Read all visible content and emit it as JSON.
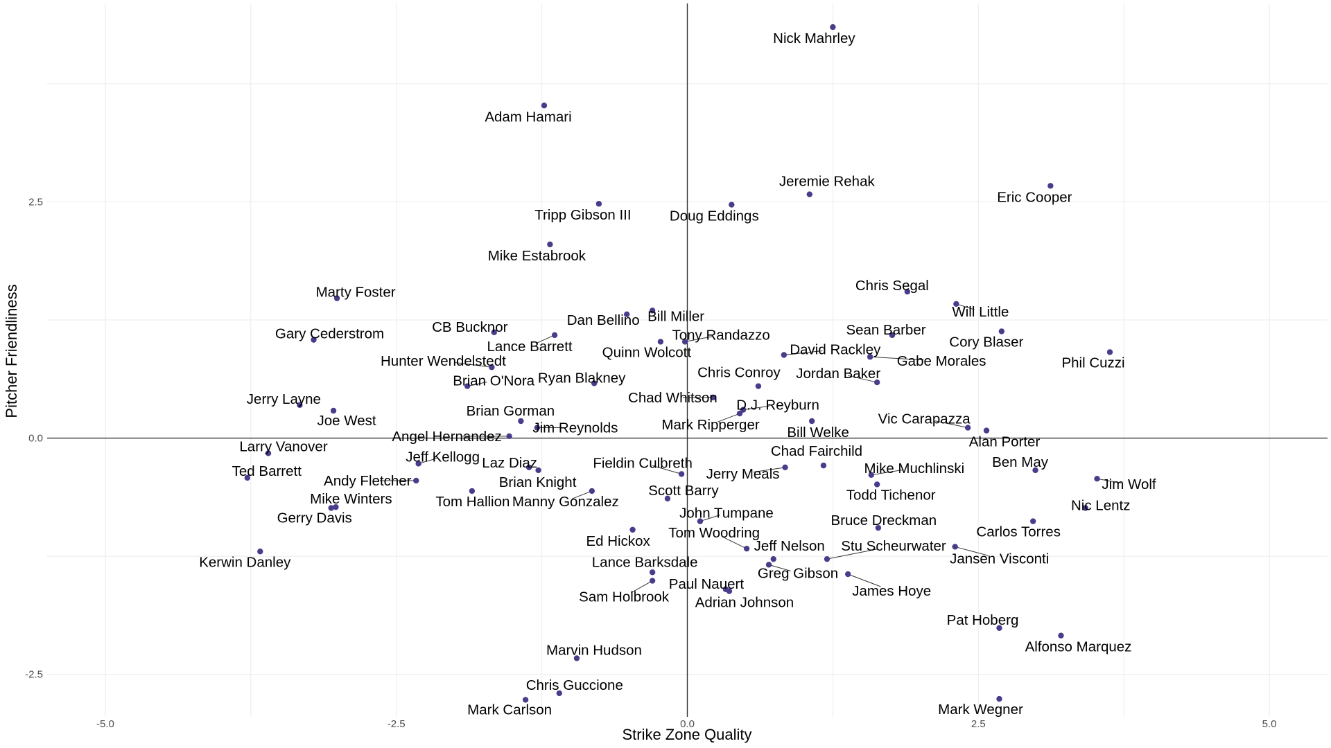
{
  "chart_data": {
    "type": "scatter",
    "title": "",
    "xlabel": "Strike Zone Quality",
    "ylabel": "Pitcher Friendliness",
    "xlim": [
      -5.5,
      5.5
    ],
    "ylim": [
      -2.95,
      4.6
    ],
    "x_ticks": [
      -5.0,
      -2.5,
      0.0,
      2.5,
      5.0
    ],
    "x_tick_labels": [
      "-5.0",
      "-2.5",
      "0.0",
      "2.5",
      "5.0"
    ],
    "y_ticks": [
      -2.5,
      0.0,
      2.5
    ],
    "y_tick_labels": [
      "-2.5",
      "0.0",
      "2.5"
    ],
    "grid": true,
    "zero_lines": true,
    "point_color": "#483d8b",
    "points": [
      {
        "name": "Nick Mahrley",
        "x": 1.25,
        "y": 4.35
      },
      {
        "name": "Adam Hamari",
        "x": -1.23,
        "y": 3.52
      },
      {
        "name": "Jeremie Rehak",
        "x": 1.05,
        "y": 2.58
      },
      {
        "name": "Eric Cooper",
        "x": 3.12,
        "y": 2.67
      },
      {
        "name": "Tripp Gibson III",
        "x": -0.76,
        "y": 2.48
      },
      {
        "name": "Doug Eddings",
        "x": 0.38,
        "y": 2.47
      },
      {
        "name": "Mike Estabrook",
        "x": -1.18,
        "y": 2.05
      },
      {
        "name": "Chris Segal",
        "x": 1.89,
        "y": 1.55
      },
      {
        "name": "Marty Foster",
        "x": -3.01,
        "y": 1.48
      },
      {
        "name": "Bill Miller",
        "x": -0.3,
        "y": 1.35
      },
      {
        "name": "Dan Bellino",
        "x": -0.52,
        "y": 1.31
      },
      {
        "name": "Will Little",
        "x": 2.31,
        "y": 1.42
      },
      {
        "name": "Sean Barber",
        "x": 1.76,
        "y": 1.09
      },
      {
        "name": "Cory Blaser",
        "x": 2.7,
        "y": 1.13
      },
      {
        "name": "CB Bucknor",
        "x": -1.66,
        "y": 1.12
      },
      {
        "name": "Gary Cederstrom",
        "x": -3.21,
        "y": 1.04
      },
      {
        "name": "Lance Barrett",
        "x": -1.14,
        "y": 1.09
      },
      {
        "name": "Tony Randazzo",
        "x": -0.02,
        "y": 1.02
      },
      {
        "name": "Quinn Wolcott",
        "x": -0.23,
        "y": 1.02
      },
      {
        "name": "David Rackley",
        "x": 0.83,
        "y": 0.88
      },
      {
        "name": "Phil Cuzzi",
        "x": 3.63,
        "y": 0.91
      },
      {
        "name": "Gabe Morales",
        "x": 1.57,
        "y": 0.86
      },
      {
        "name": "Hunter Wendelstedt",
        "x": -1.68,
        "y": 0.75
      },
      {
        "name": "Brian O'Nora",
        "x": -1.89,
        "y": 0.55
      },
      {
        "name": "Ryan Blakney",
        "x": -0.8,
        "y": 0.58
      },
      {
        "name": "Chris Conroy",
        "x": 0.61,
        "y": 0.55
      },
      {
        "name": "Jordan Baker",
        "x": 1.63,
        "y": 0.59
      },
      {
        "name": "Chad Whitson",
        "x": 0.22,
        "y": 0.43
      },
      {
        "name": "Jerry Layne",
        "x": -3.33,
        "y": 0.35
      },
      {
        "name": "Joe West",
        "x": -3.04,
        "y": 0.29
      },
      {
        "name": "D.J. Reyburn",
        "x": 0.48,
        "y": 0.3
      },
      {
        "name": "Mark Ripperger",
        "x": 0.45,
        "y": 0.26
      },
      {
        "name": "Brian Gorman",
        "x": -1.43,
        "y": 0.18
      },
      {
        "name": "Jim Reynolds",
        "x": -1.29,
        "y": 0.11
      },
      {
        "name": "Bill Welke",
        "x": 1.07,
        "y": 0.18
      },
      {
        "name": "Vic Carapazza",
        "x": 2.41,
        "y": 0.11
      },
      {
        "name": "Alan Porter",
        "x": 2.57,
        "y": 0.08
      },
      {
        "name": "Angel Hernandez",
        "x": -1.53,
        "y": 0.02
      },
      {
        "name": "Larry Vanover",
        "x": -3.6,
        "y": -0.16
      },
      {
        "name": "Jeff Kellogg",
        "x": -2.31,
        "y": -0.27
      },
      {
        "name": "Laz Diaz",
        "x": -1.36,
        "y": -0.31
      },
      {
        "name": "Brian Knight",
        "x": -1.28,
        "y": -0.34
      },
      {
        "name": "Chad Fairchild",
        "x": 1.17,
        "y": -0.29
      },
      {
        "name": "Fieldin Culbreth",
        "x": -0.05,
        "y": -0.38
      },
      {
        "name": "Jerry Meals",
        "x": 0.84,
        "y": -0.31
      },
      {
        "name": "Mike Muchlinski",
        "x": 1.58,
        "y": -0.39
      },
      {
        "name": "Ben May",
        "x": 2.99,
        "y": -0.34
      },
      {
        "name": "Ted Barrett",
        "x": -3.78,
        "y": -0.42
      },
      {
        "name": "Andy Fletcher",
        "x": -2.33,
        "y": -0.45
      },
      {
        "name": "Jim Wolf",
        "x": 3.52,
        "y": -0.43
      },
      {
        "name": "Todd Tichenor",
        "x": 1.63,
        "y": -0.49
      },
      {
        "name": "Tom Hallion",
        "x": -1.85,
        "y": -0.56
      },
      {
        "name": "Manny Gonzalez",
        "x": -0.82,
        "y": -0.56
      },
      {
        "name": "Scott Barry",
        "x": -0.17,
        "y": -0.64
      },
      {
        "name": "Nic Lentz",
        "x": 3.42,
        "y": -0.74
      },
      {
        "name": "Mike Winters",
        "x": -3.02,
        "y": -0.73
      },
      {
        "name": "Gerry Davis",
        "x": -3.06,
        "y": -0.74
      },
      {
        "name": "John Tumpane",
        "x": 0.11,
        "y": -0.88
      },
      {
        "name": "Carlos Torres",
        "x": 2.97,
        "y": -0.88
      },
      {
        "name": "Bruce Dreckman",
        "x": 1.64,
        "y": -0.95
      },
      {
        "name": "Ed Hickox",
        "x": -0.47,
        "y": -0.97
      },
      {
        "name": "Tom Woodring",
        "x": 0.51,
        "y": -1.17
      },
      {
        "name": "Jansen Visconti",
        "x": 2.3,
        "y": -1.15
      },
      {
        "name": "Kerwin Danley",
        "x": -3.67,
        "y": -1.2
      },
      {
        "name": "Jeff Nelson",
        "x": 0.74,
        "y": -1.28
      },
      {
        "name": "Stu Scheurwater",
        "x": 1.2,
        "y": -1.28
      },
      {
        "name": "Greg Gibson",
        "x": 0.7,
        "y": -1.34
      },
      {
        "name": "Lance Barksdale",
        "x": -0.3,
        "y": -1.42
      },
      {
        "name": "James Hoye",
        "x": 1.38,
        "y": -1.44
      },
      {
        "name": "Sam Holbrook",
        "x": -0.3,
        "y": -1.51
      },
      {
        "name": "Paul Nauert",
        "x": 0.33,
        "y": -1.6
      },
      {
        "name": "Adrian Johnson",
        "x": 0.36,
        "y": -1.62
      },
      {
        "name": "Pat Hoberg",
        "x": 2.68,
        "y": -2.01
      },
      {
        "name": "Alfonso Marquez",
        "x": 3.21,
        "y": -2.09
      },
      {
        "name": "Marvin Hudson",
        "x": -0.95,
        "y": -2.33
      },
      {
        "name": "Chris Guccione",
        "x": -1.1,
        "y": -2.7
      },
      {
        "name": "Mark Carlson",
        "x": -1.39,
        "y": -2.77
      },
      {
        "name": "Mark Wegner",
        "x": 2.68,
        "y": -2.76
      }
    ]
  }
}
